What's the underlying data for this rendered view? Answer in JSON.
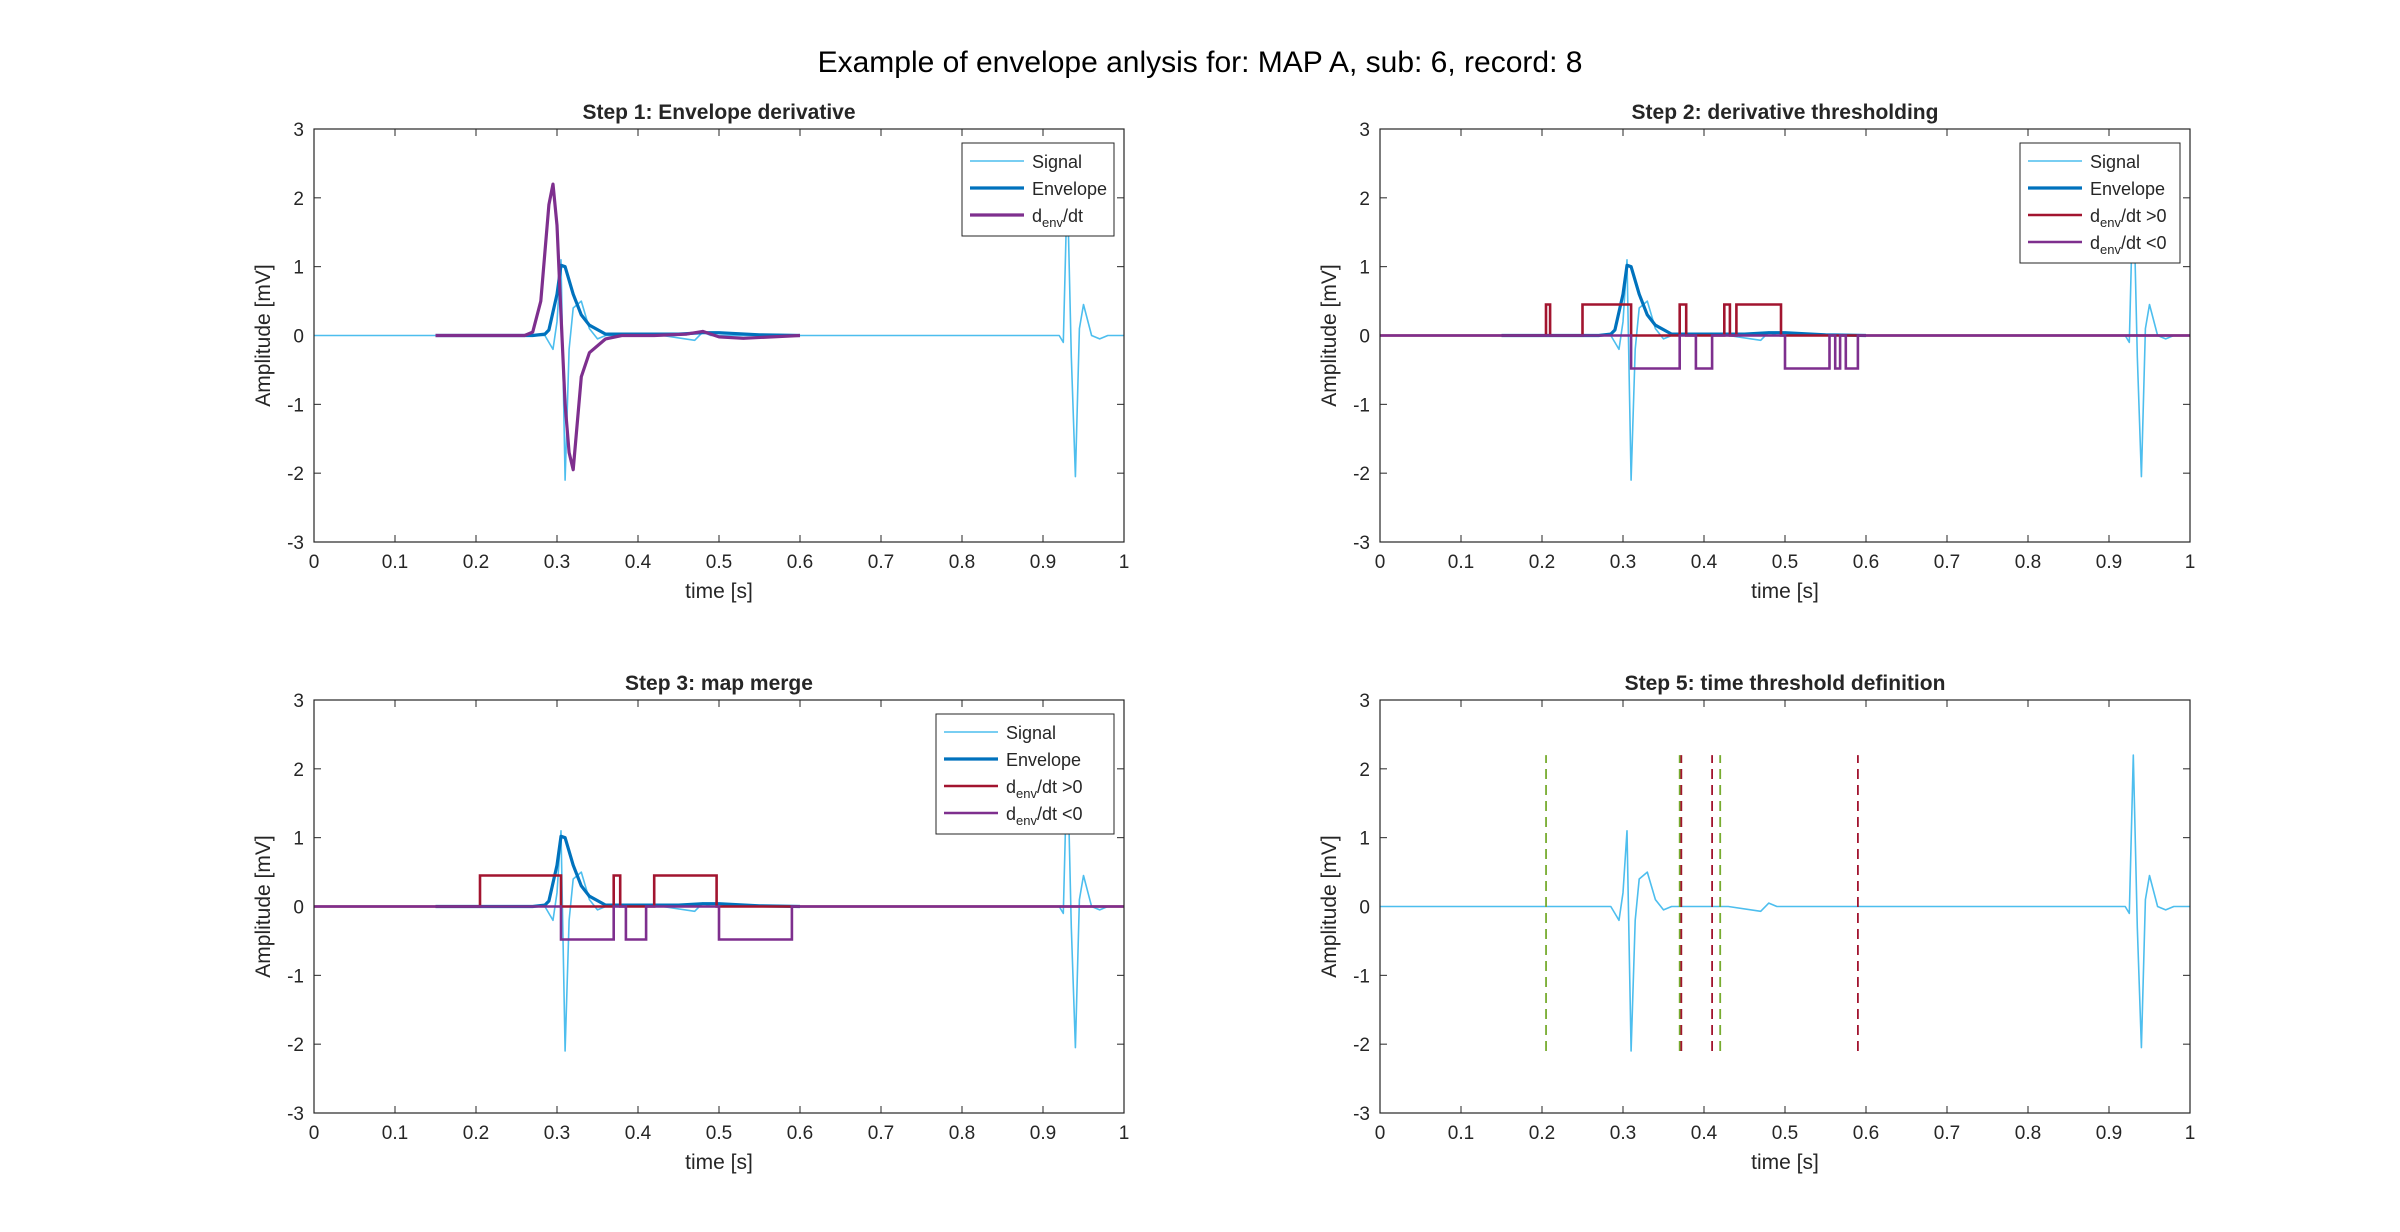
{
  "figure": {
    "title": "Example of envelope anlysis for: MAP A, sub: 6, record: 8"
  },
  "colors": {
    "signal": "#4DBEEE",
    "envelope": "#0072BD",
    "positive": "#A2142F",
    "negative": "#7E2F8E",
    "deriv": "#7E2F8E",
    "green_line": "#77AC30",
    "red_line": "#A2142F"
  },
  "chart_data": [
    {
      "type": "line",
      "title": "Step 1: Envelope derivative",
      "xlabel": "time [s]",
      "ylabel": "Amplitude [mV]",
      "xlim": [
        0,
        1
      ],
      "ylim": [
        -3,
        3
      ],
      "xticks": [
        "0",
        "0.1",
        "0.2",
        "0.3",
        "0.4",
        "0.5",
        "0.6",
        "0.7",
        "0.8",
        "0.9",
        "1"
      ],
      "yticks": [
        "-3",
        "-2",
        "-1",
        "0",
        "1",
        "2",
        "3"
      ],
      "legend": {
        "position": "top-right",
        "entries": [
          {
            "key": "signal",
            "label": "Signal"
          },
          {
            "key": "envelope",
            "label": "Envelope"
          },
          {
            "key": "deriv",
            "label": "d",
            "sub": "env",
            "tail": "/dt"
          }
        ]
      },
      "series": [
        {
          "name": "Signal",
          "key": "signal",
          "x": [
            0,
            0.27,
            0.285,
            0.29,
            0.295,
            0.3,
            0.305,
            0.31,
            0.315,
            0.32,
            0.33,
            0.34,
            0.35,
            0.36,
            0.43,
            0.47,
            0.48,
            0.49,
            0.55,
            0.88,
            0.91,
            0.92,
            0.925,
            0.93,
            0.935,
            0.94,
            0.945,
            0.95,
            0.96,
            0.97,
            0.98,
            1
          ],
          "y": [
            0,
            0,
            0,
            -0.1,
            -0.2,
            0.2,
            1.1,
            -2.1,
            -0.2,
            0.4,
            0.5,
            0.1,
            -0.05,
            0,
            0,
            -0.07,
            0.05,
            0,
            0,
            0,
            0,
            0,
            -0.1,
            2.2,
            -0.3,
            -2.05,
            0.1,
            0.45,
            0,
            -0.05,
            0,
            0
          ]
        },
        {
          "name": "Envelope",
          "key": "envelope",
          "x": [
            0.15,
            0.27,
            0.285,
            0.29,
            0.3,
            0.305,
            0.31,
            0.32,
            0.33,
            0.34,
            0.36,
            0.45,
            0.48,
            0.5,
            0.55,
            0.6
          ],
          "y": [
            0,
            0,
            0.02,
            0.08,
            0.6,
            1.02,
            1.0,
            0.6,
            0.3,
            0.15,
            0.02,
            0.02,
            0.04,
            0.04,
            0.01,
            0
          ]
        },
        {
          "name": "denv/dt",
          "key": "deriv",
          "x": [
            0.15,
            0.26,
            0.27,
            0.28,
            0.29,
            0.295,
            0.3,
            0.305,
            0.31,
            0.315,
            0.32,
            0.33,
            0.34,
            0.36,
            0.38,
            0.42,
            0.46,
            0.48,
            0.5,
            0.53,
            0.6
          ],
          "y": [
            0,
            0,
            0.05,
            0.5,
            1.9,
            2.2,
            1.6,
            0.3,
            -1.0,
            -1.7,
            -1.95,
            -0.6,
            -0.25,
            -0.05,
            0,
            0,
            0.02,
            0.06,
            -0.02,
            -0.04,
            0
          ]
        }
      ],
      "steps": []
    },
    {
      "type": "line",
      "title": "Step 2: derivative thresholding",
      "xlabel": "time [s]",
      "ylabel": "Amplitude [mV]",
      "xlim": [
        0,
        1
      ],
      "ylim": [
        -3,
        3
      ],
      "xticks": [
        "0",
        "0.1",
        "0.2",
        "0.3",
        "0.4",
        "0.5",
        "0.6",
        "0.7",
        "0.8",
        "0.9",
        "1"
      ],
      "yticks": [
        "-3",
        "-2",
        "-1",
        "0",
        "1",
        "2",
        "3"
      ],
      "legend": {
        "position": "top-right",
        "entries": [
          {
            "key": "signal",
            "label": "Signal"
          },
          {
            "key": "envelope",
            "label": "Envelope"
          },
          {
            "key": "positive",
            "label": "d",
            "sub": "env",
            "tail": "/dt >0"
          },
          {
            "key": "negative",
            "label": "d",
            "sub": "env",
            "tail": "/dt <0"
          }
        ]
      },
      "series": [
        {
          "name": "Signal",
          "key": "signal",
          "x": [
            0,
            0.27,
            0.285,
            0.29,
            0.295,
            0.3,
            0.305,
            0.31,
            0.315,
            0.32,
            0.33,
            0.34,
            0.35,
            0.36,
            0.43,
            0.47,
            0.48,
            0.49,
            0.55,
            0.88,
            0.91,
            0.92,
            0.925,
            0.93,
            0.935,
            0.94,
            0.945,
            0.95,
            0.96,
            0.97,
            0.98,
            1
          ],
          "y": [
            0,
            0,
            0,
            -0.1,
            -0.2,
            0.2,
            1.1,
            -2.1,
            -0.2,
            0.4,
            0.5,
            0.1,
            -0.05,
            0,
            0,
            -0.07,
            0.05,
            0,
            0,
            0,
            0,
            0,
            -0.1,
            2.2,
            -0.3,
            -2.05,
            0.1,
            0.45,
            0,
            -0.05,
            0,
            0
          ]
        },
        {
          "name": "Envelope",
          "key": "envelope",
          "x": [
            0.15,
            0.27,
            0.285,
            0.29,
            0.3,
            0.305,
            0.31,
            0.32,
            0.33,
            0.34,
            0.36,
            0.45,
            0.48,
            0.5,
            0.55,
            0.6
          ],
          "y": [
            0,
            0,
            0.02,
            0.08,
            0.6,
            1.02,
            1.0,
            0.6,
            0.3,
            0.15,
            0.02,
            0.02,
            0.04,
            0.04,
            0.01,
            0
          ]
        }
      ],
      "steps": [
        {
          "name": "denv/dt >0",
          "key": "positive",
          "value": 0.45,
          "intervals": [
            [
              0.205,
              0.21
            ],
            [
              0.25,
              0.31
            ],
            [
              0.37,
              0.378
            ],
            [
              0.425,
              0.432
            ],
            [
              0.44,
              0.495
            ]
          ]
        },
        {
          "name": "denv/dt <0",
          "key": "negative",
          "value": -0.48,
          "intervals": [
            [
              0.31,
              0.37
            ],
            [
              0.39,
              0.41
            ],
            [
              0.5,
              0.555
            ],
            [
              0.562,
              0.568
            ],
            [
              0.575,
              0.59
            ]
          ]
        }
      ]
    },
    {
      "type": "line",
      "title": "Step 3: map merge",
      "xlabel": "time [s]",
      "ylabel": "Amplitude [mV]",
      "xlim": [
        0,
        1
      ],
      "ylim": [
        -3,
        3
      ],
      "xticks": [
        "0",
        "0.1",
        "0.2",
        "0.3",
        "0.4",
        "0.5",
        "0.6",
        "0.7",
        "0.8",
        "0.9",
        "1"
      ],
      "yticks": [
        "-3",
        "-2",
        "-1",
        "0",
        "1",
        "2",
        "3"
      ],
      "legend": {
        "position": "top-right",
        "entries": [
          {
            "key": "signal",
            "label": "Signal"
          },
          {
            "key": "envelope",
            "label": "Envelope"
          },
          {
            "key": "positive",
            "label": "d",
            "sub": "env",
            "tail": "/dt >0"
          },
          {
            "key": "negative",
            "label": "d",
            "sub": "env",
            "tail": "/dt <0"
          }
        ]
      },
      "series": [
        {
          "name": "Signal",
          "key": "signal",
          "x": [
            0,
            0.27,
            0.285,
            0.29,
            0.295,
            0.3,
            0.305,
            0.31,
            0.315,
            0.32,
            0.33,
            0.34,
            0.35,
            0.36,
            0.43,
            0.47,
            0.48,
            0.49,
            0.55,
            0.88,
            0.91,
            0.92,
            0.925,
            0.93,
            0.935,
            0.94,
            0.945,
            0.95,
            0.96,
            0.97,
            0.98,
            1
          ],
          "y": [
            0,
            0,
            0,
            -0.1,
            -0.2,
            0.2,
            1.1,
            -2.1,
            -0.2,
            0.4,
            0.5,
            0.1,
            -0.05,
            0,
            0,
            -0.07,
            0.05,
            0,
            0,
            0,
            0,
            0,
            -0.1,
            2.2,
            -0.3,
            -2.05,
            0.1,
            0.45,
            0,
            -0.05,
            0,
            0
          ]
        },
        {
          "name": "Envelope",
          "key": "envelope",
          "x": [
            0.15,
            0.27,
            0.285,
            0.29,
            0.3,
            0.305,
            0.31,
            0.32,
            0.33,
            0.34,
            0.36,
            0.45,
            0.48,
            0.5,
            0.55,
            0.6
          ],
          "y": [
            0,
            0,
            0.02,
            0.08,
            0.6,
            1.02,
            1.0,
            0.6,
            0.3,
            0.15,
            0.02,
            0.02,
            0.04,
            0.04,
            0.01,
            0
          ]
        }
      ],
      "steps": [
        {
          "name": "denv/dt >0",
          "key": "positive",
          "value": 0.45,
          "intervals": [
            [
              0.205,
              0.305
            ],
            [
              0.37,
              0.378
            ],
            [
              0.42,
              0.497
            ]
          ]
        },
        {
          "name": "denv/dt <0",
          "key": "negative",
          "value": -0.48,
          "intervals": [
            [
              0.305,
              0.37
            ],
            [
              0.385,
              0.41
            ],
            [
              0.5,
              0.59
            ]
          ]
        }
      ]
    },
    {
      "type": "line",
      "title": "Step 5: time threshold definition",
      "xlabel": "time [s]",
      "ylabel": "Amplitude [mV]",
      "xlim": [
        0,
        1
      ],
      "ylim": [
        -3,
        3
      ],
      "xticks": [
        "0",
        "0.1",
        "0.2",
        "0.3",
        "0.4",
        "0.5",
        "0.6",
        "0.7",
        "0.8",
        "0.9",
        "1"
      ],
      "yticks": [
        "-3",
        "-2",
        "-1",
        "0",
        "1",
        "2",
        "3"
      ],
      "legend": null,
      "series": [
        {
          "name": "Signal",
          "key": "signal",
          "x": [
            0,
            0.27,
            0.285,
            0.29,
            0.295,
            0.3,
            0.305,
            0.31,
            0.315,
            0.32,
            0.33,
            0.34,
            0.35,
            0.36,
            0.43,
            0.47,
            0.48,
            0.49,
            0.55,
            0.88,
            0.91,
            0.92,
            0.925,
            0.93,
            0.935,
            0.94,
            0.945,
            0.95,
            0.96,
            0.97,
            0.98,
            1
          ],
          "y": [
            0,
            0,
            0,
            -0.1,
            -0.2,
            0.2,
            1.1,
            -2.1,
            -0.2,
            0.4,
            0.5,
            0.1,
            -0.05,
            0,
            0,
            -0.07,
            0.05,
            0,
            0,
            0,
            0,
            0,
            -0.1,
            2.2,
            -0.3,
            -2.05,
            0.1,
            0.45,
            0,
            -0.05,
            0,
            0
          ]
        }
      ],
      "steps": [],
      "vlines": [
        {
          "key": "green_line",
          "x": 0.205,
          "y": [
            -2.1,
            2.2
          ]
        },
        {
          "key": "green_line",
          "x": 0.37,
          "y": [
            -2.1,
            2.2
          ]
        },
        {
          "key": "red_line",
          "x": 0.372,
          "y": [
            -2.1,
            2.2
          ]
        },
        {
          "key": "red_line",
          "x": 0.41,
          "y": [
            -2.1,
            2.2
          ]
        },
        {
          "key": "green_line",
          "x": 0.42,
          "y": [
            -2.1,
            2.2
          ]
        },
        {
          "key": "red_line",
          "x": 0.59,
          "y": [
            -2.1,
            2.2
          ]
        }
      ]
    }
  ]
}
